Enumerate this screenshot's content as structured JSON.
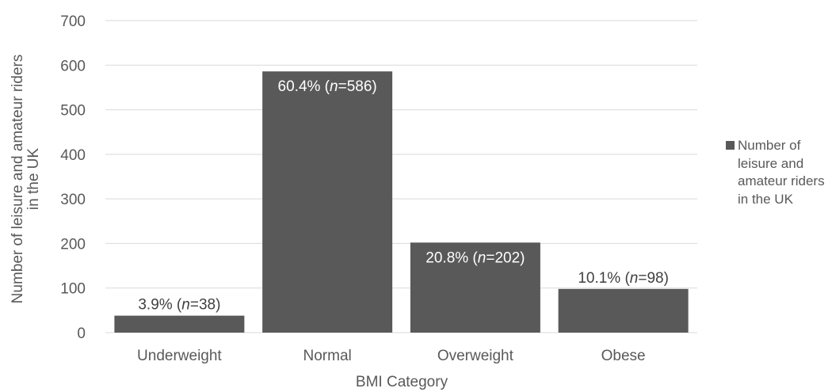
{
  "chart_data": {
    "type": "bar",
    "categories": [
      "Underweight",
      "Normal",
      "Overweight",
      "Obese"
    ],
    "values": [
      38,
      586,
      202,
      98
    ],
    "data_labels": [
      {
        "pre": "3.9% (",
        "n": "n",
        "post": "=38)"
      },
      {
        "pre": "60.4% (",
        "n": "n",
        "post": "=586)"
      },
      {
        "pre": "20.8% (",
        "n": "n",
        "post": "=202)"
      },
      {
        "pre": "10.1% (",
        "n": "n",
        "post": "=98)"
      }
    ],
    "xlabel": "BMI Category",
    "ylabel_lines": [
      "Number of leisure and amateur riders",
      "in the UK"
    ],
    "ylim": [
      0,
      700
    ],
    "yticks": [
      0,
      100,
      200,
      300,
      400,
      500,
      600,
      700
    ],
    "grid": true,
    "legend": {
      "position": "right",
      "label": "Number of leisure and amateur riders in the UK"
    },
    "colors": {
      "bar": "#595959",
      "grid": "#d9d9d9",
      "text": "#595959",
      "label_dark": "#404040",
      "label_light": "#ffffff"
    }
  }
}
